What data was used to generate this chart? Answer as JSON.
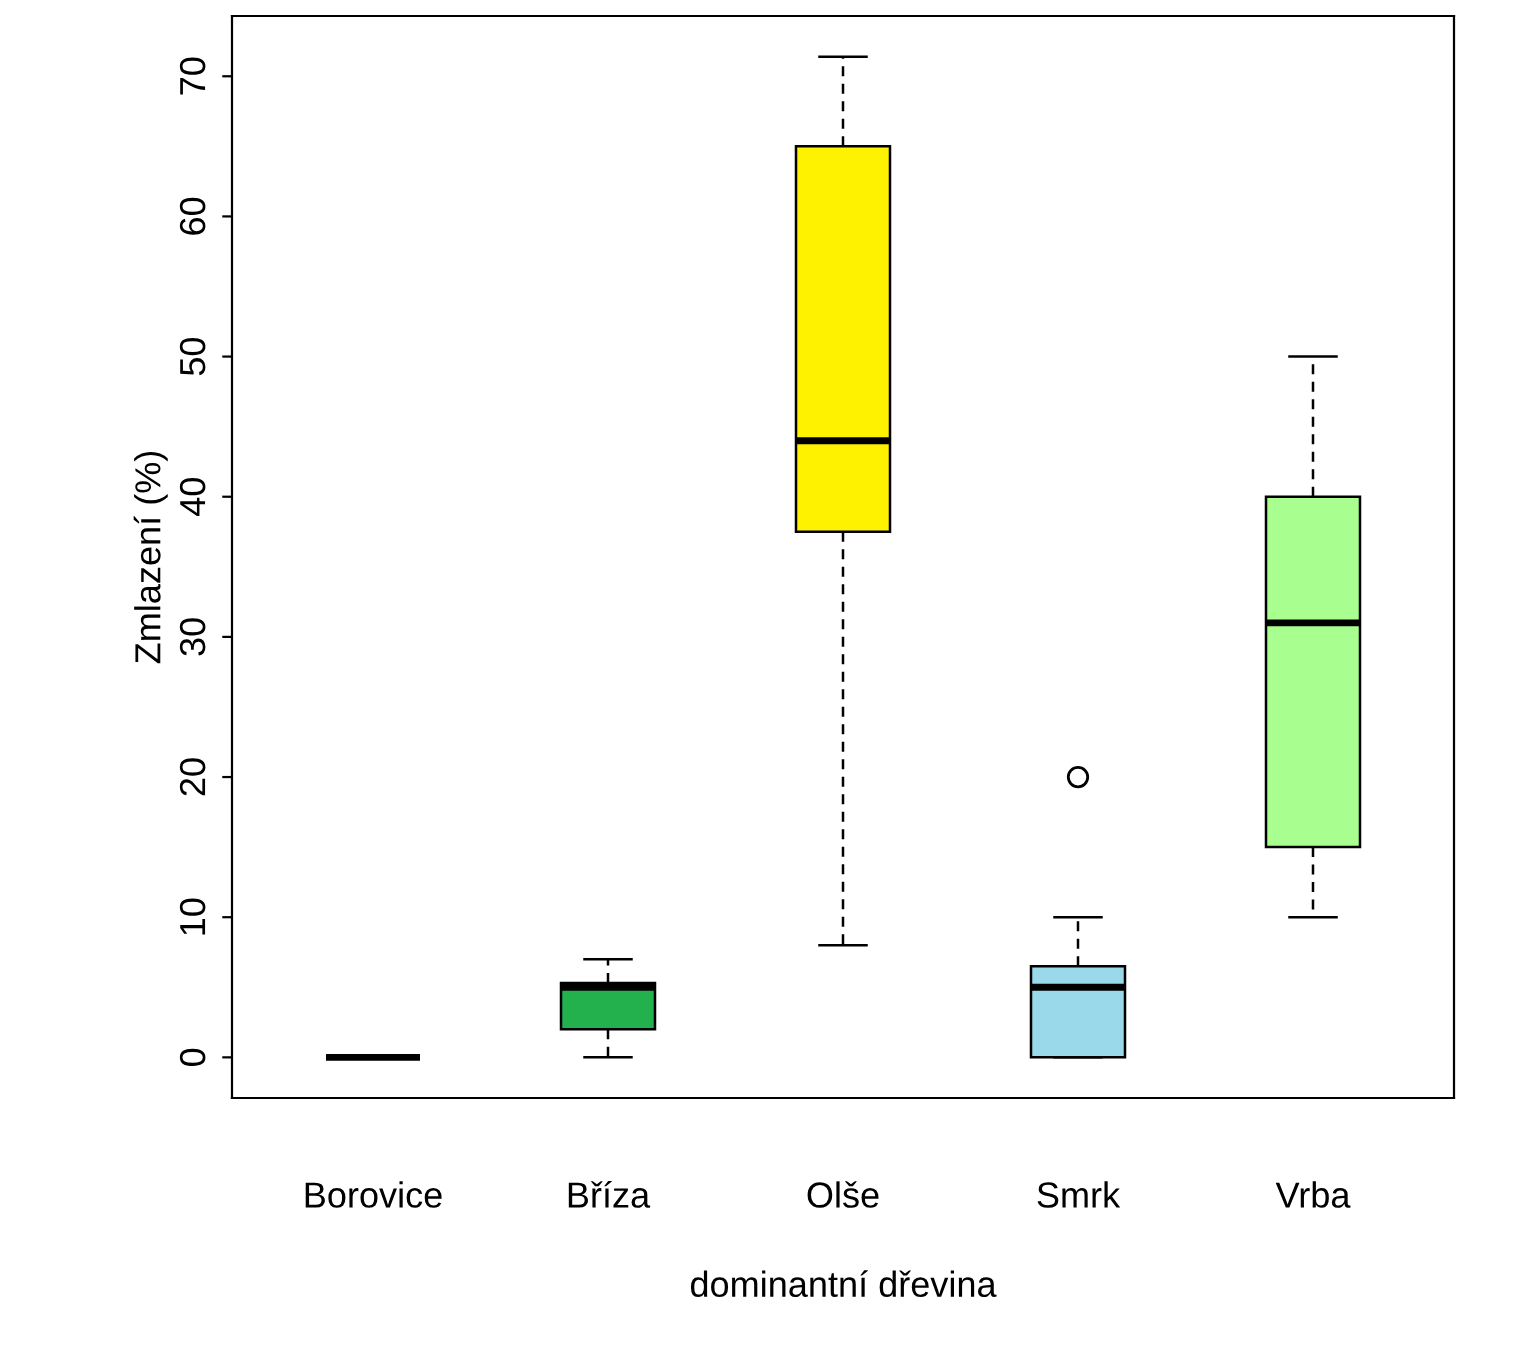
{
  "chart_data": {
    "type": "box",
    "xlabel": "dominantní dřevina",
    "ylabel": "Zmlazení (%)",
    "categories": [
      "Borovice",
      "Bříza",
      "Olše",
      "Smrk",
      "Vrba"
    ],
    "colors": [
      "#000000",
      "#22b14c",
      "#fff200",
      "#99d9ea",
      "#a8ff8f"
    ],
    "boxes": [
      {
        "low": 0,
        "q1": 0,
        "median": 0,
        "q3": 0,
        "high": 0
      },
      {
        "low": 0,
        "q1": 2,
        "median": 5,
        "q3": 5.3,
        "high": 7
      },
      {
        "low": 8,
        "q1": 37.5,
        "median": 44,
        "q3": 65,
        "high": 71.4
      },
      {
        "low": 0,
        "q1": 0,
        "median": 5,
        "q3": 6.5,
        "high": 10,
        "outliers": [
          20
        ]
      },
      {
        "low": 10,
        "q1": 15,
        "median": 31,
        "q3": 40,
        "high": 50
      }
    ],
    "ylim": [
      -2.9,
      74.3
    ],
    "yticks": [
      0,
      10,
      20,
      30,
      40,
      50,
      60,
      70
    ],
    "grid": false
  }
}
